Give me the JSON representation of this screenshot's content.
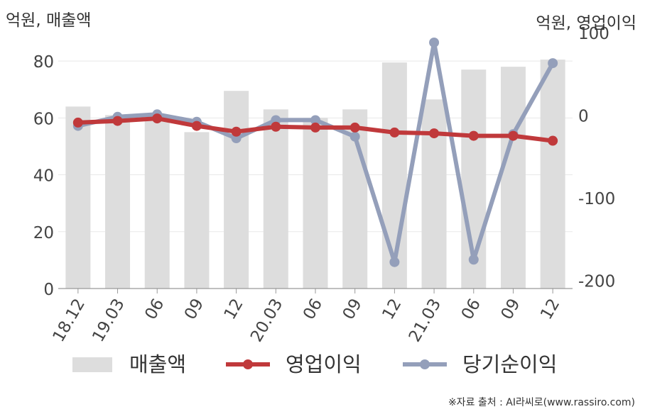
{
  "chart_data": {
    "type": "bar",
    "categories": [
      "18.12",
      "19.03",
      "06",
      "09",
      "12",
      "20.03",
      "06",
      "09",
      "12",
      "21.03",
      "06",
      "09",
      "12"
    ],
    "left_axis": {
      "unit_label": "억원, 매출액",
      "ylim": [
        0,
        90
      ],
      "ticks": [
        0,
        20,
        40,
        60,
        80
      ]
    },
    "right_axis": {
      "unit_label": "억원, 영업이익",
      "ylim": [
        -210,
        100
      ],
      "ticks": [
        100,
        0,
        -100,
        -200
      ]
    },
    "series": [
      {
        "name": "매출액",
        "kind": "bar",
        "axis": "left",
        "color": "#dddddd",
        "values": [
          64,
          61,
          61,
          55,
          69.5,
          63,
          60,
          63,
          79.5,
          66.5,
          77,
          78,
          80.5
        ]
      },
      {
        "name": "영업이익",
        "kind": "line",
        "axis": "right",
        "color": "#c0393b",
        "values": [
          -9,
          -7,
          -4,
          -13,
          -20,
          -14,
          -15,
          -15,
          -21,
          -22,
          -25,
          -25,
          -31
        ]
      },
      {
        "name": "당기순이익",
        "kind": "line",
        "axis": "right",
        "color": "#949fba",
        "values": [
          -13,
          -2,
          1,
          -8,
          -28,
          -6,
          -6,
          -26,
          -178,
          88,
          -175,
          -23,
          63
        ]
      }
    ],
    "grid": true,
    "legend": "bottom",
    "source": "※자료 출처 : AI라씨로(www.rassiro.com)"
  }
}
